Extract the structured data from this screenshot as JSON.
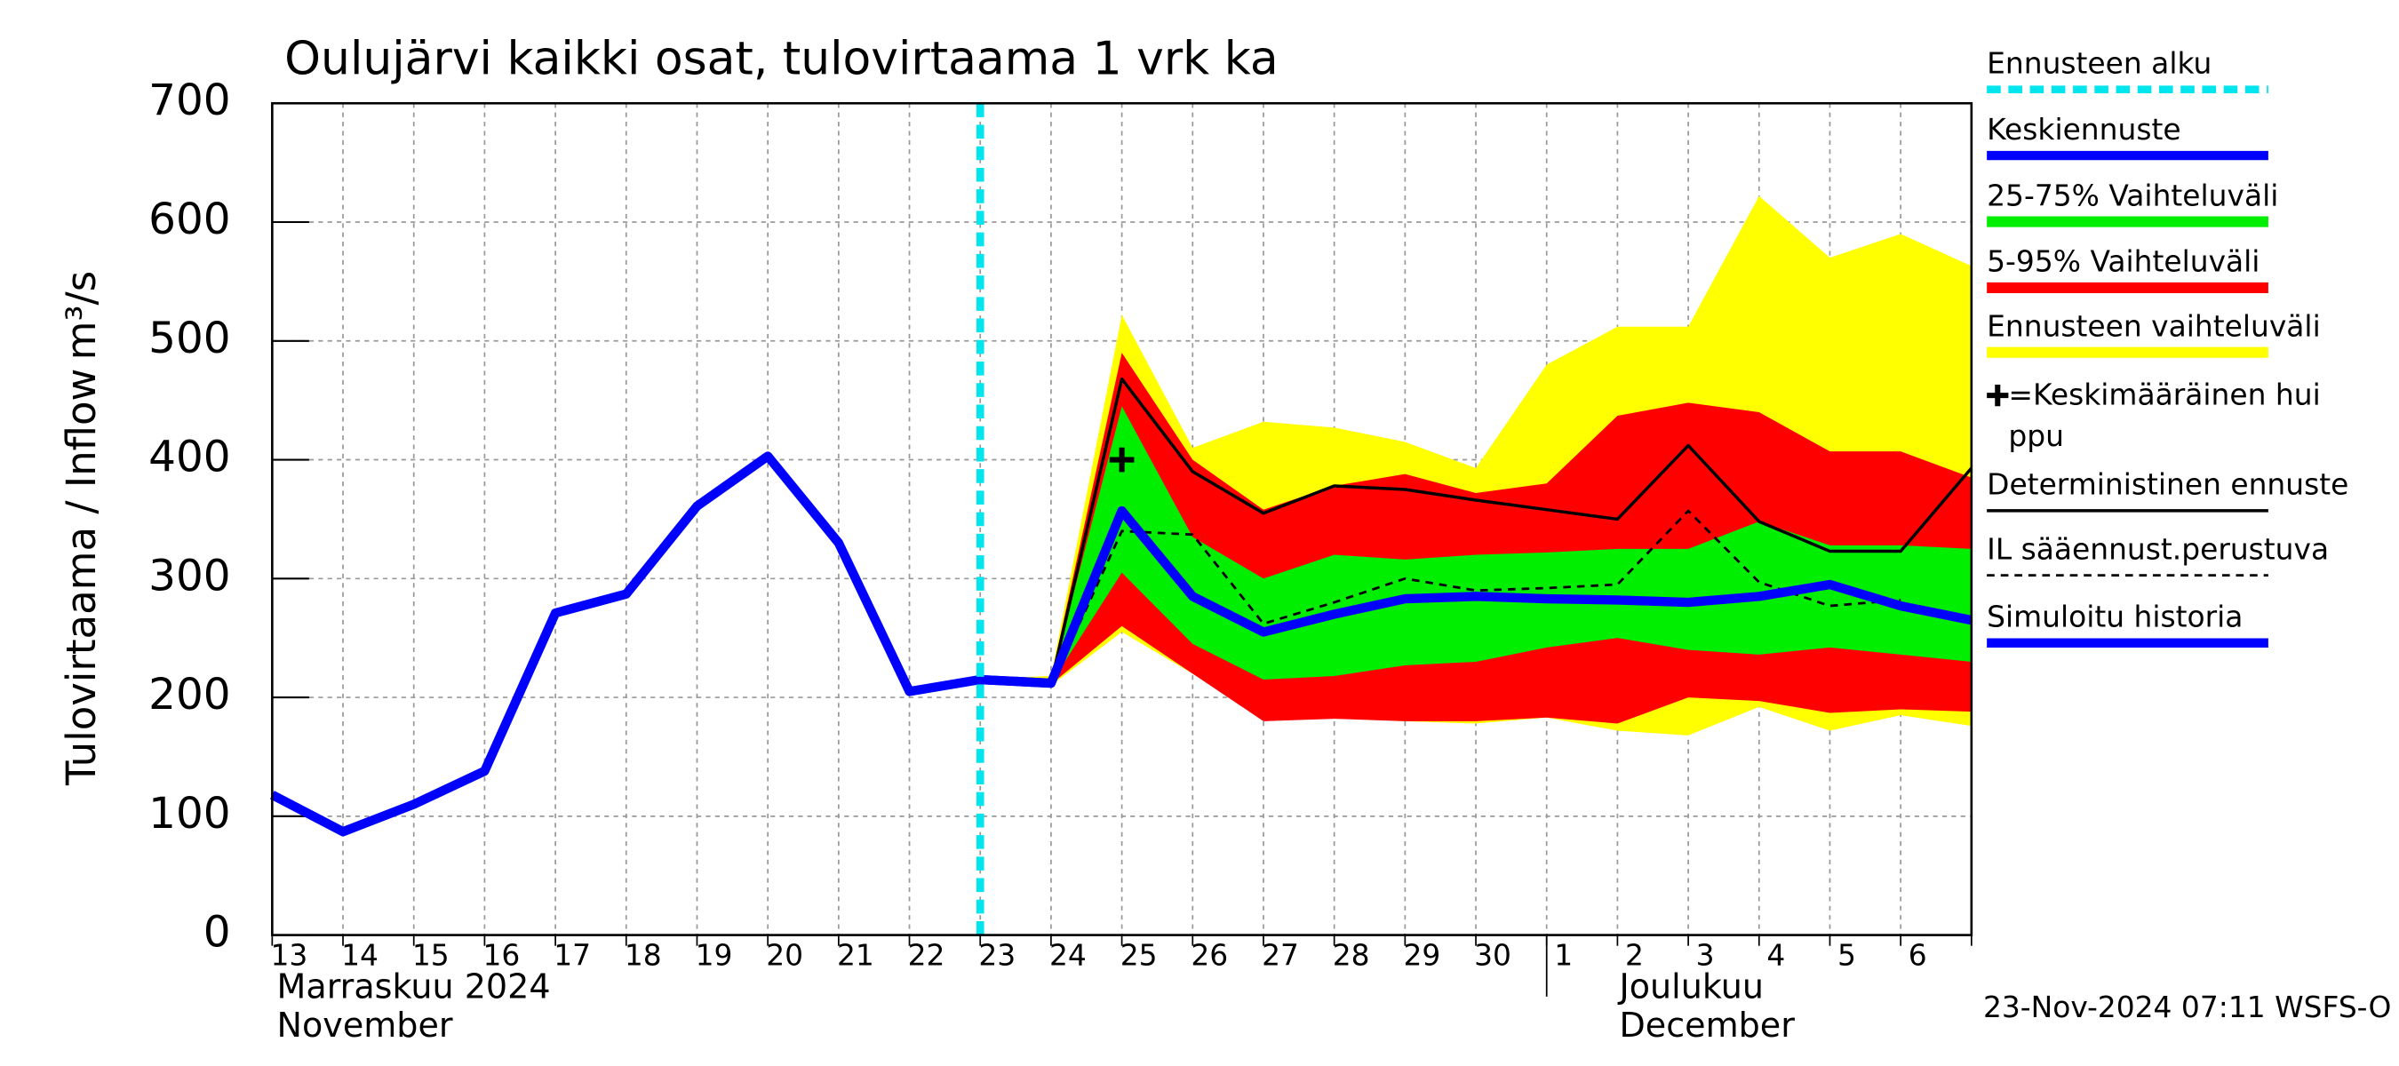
{
  "chart_data": {
    "type": "line",
    "title": "Oulujärvi kaikki osat, tulovirtaama 1 vrk ka",
    "y_label": "Tulovirtaama / Inflow",
    "y_unit": "m³/s",
    "month_labels": [
      "Marraskuu 2024",
      "November",
      "Joulukuu",
      "December"
    ],
    "footer": "23-Nov-2024 07:11 WSFS-O",
    "categories": [
      "13",
      "14",
      "15",
      "16",
      "17",
      "18",
      "19",
      "20",
      "21",
      "22",
      "23",
      "24",
      "25",
      "26",
      "27",
      "28",
      "29",
      "30",
      "1",
      "2",
      "3",
      "4",
      "5",
      "6",
      null
    ],
    "ylim": [
      0,
      700
    ],
    "yticks": [
      0,
      100,
      200,
      300,
      400,
      500,
      600,
      700
    ],
    "grid": true,
    "bands": [
      {
        "name": "Ennusteen vaihteluväli",
        "color": "#ffff00",
        "lower": [
          null,
          null,
          null,
          null,
          null,
          null,
          null,
          null,
          null,
          null,
          214,
          210,
          255,
          220,
          185,
          183,
          180,
          178,
          183,
          172,
          168,
          192,
          172,
          185,
          176
        ],
        "upper": [
          null,
          null,
          null,
          null,
          null,
          null,
          null,
          null,
          null,
          null,
          216,
          218,
          522,
          410,
          432,
          427,
          415,
          393,
          480,
          512,
          512,
          622,
          570,
          590,
          563
        ]
      },
      {
        "name": "5-95% Vaihteluväli",
        "color": "#ff0000",
        "lower": [
          null,
          null,
          null,
          null,
          null,
          null,
          null,
          null,
          null,
          null,
          214,
          211,
          260,
          220,
          180,
          182,
          180,
          180,
          183,
          178,
          200,
          197,
          187,
          190,
          188
        ],
        "upper": [
          null,
          null,
          null,
          null,
          null,
          null,
          null,
          null,
          null,
          null,
          216,
          216,
          490,
          400,
          358,
          378,
          388,
          372,
          380,
          437,
          448,
          440,
          407,
          407,
          385
        ]
      },
      {
        "name": "25-75% Vaihteluväli",
        "color": "#00ee00",
        "lower": [
          null,
          null,
          null,
          null,
          null,
          null,
          null,
          null,
          null,
          null,
          214,
          212,
          305,
          245,
          215,
          218,
          227,
          230,
          242,
          250,
          240,
          236,
          242,
          236,
          230
        ],
        "upper": [
          null,
          null,
          null,
          null,
          null,
          null,
          null,
          null,
          null,
          null,
          216,
          214,
          445,
          335,
          300,
          320,
          316,
          320,
          322,
          325,
          325,
          348,
          328,
          328,
          325
        ]
      }
    ],
    "series": [
      {
        "name": "Deterministinen ennuste",
        "color": "#000000",
        "style": "thin",
        "values": [
          null,
          null,
          null,
          null,
          null,
          null,
          null,
          null,
          330,
          205,
          215,
          212,
          468,
          390,
          355,
          378,
          375,
          366,
          358,
          350,
          412,
          348,
          323,
          323,
          393
        ]
      },
      {
        "name": "IL sääennust.perustuva",
        "color": "#000000",
        "style": "dashed",
        "values": [
          null,
          null,
          null,
          null,
          null,
          null,
          null,
          null,
          null,
          null,
          215,
          210,
          340,
          337,
          262,
          280,
          300,
          290,
          292,
          295,
          357,
          297,
          277,
          282,
          null
        ]
      },
      {
        "name": "Simuloitu historia",
        "color": "#0000ff",
        "style": "thick",
        "values": [
          118,
          87,
          110,
          138,
          271,
          287,
          361,
          403,
          330,
          205,
          215,
          212,
          null,
          null,
          null,
          null,
          null,
          null,
          null,
          null,
          null,
          null,
          null,
          null,
          null
        ]
      },
      {
        "name": "Keskiennuste",
        "color": "#0000ff",
        "style": "thick",
        "values": [
          null,
          null,
          null,
          null,
          null,
          null,
          null,
          null,
          null,
          null,
          215,
          212,
          357,
          285,
          255,
          270,
          283,
          285,
          283,
          282,
          280,
          285,
          295,
          277,
          265
        ]
      }
    ],
    "forecast_start": {
      "name": "Ennusteen alku",
      "category": "23",
      "color": "#00e5ee"
    },
    "peak": {
      "name": "=Keskimääräinen huippu",
      "category": "25",
      "value": 400,
      "color": "#000000"
    }
  }
}
